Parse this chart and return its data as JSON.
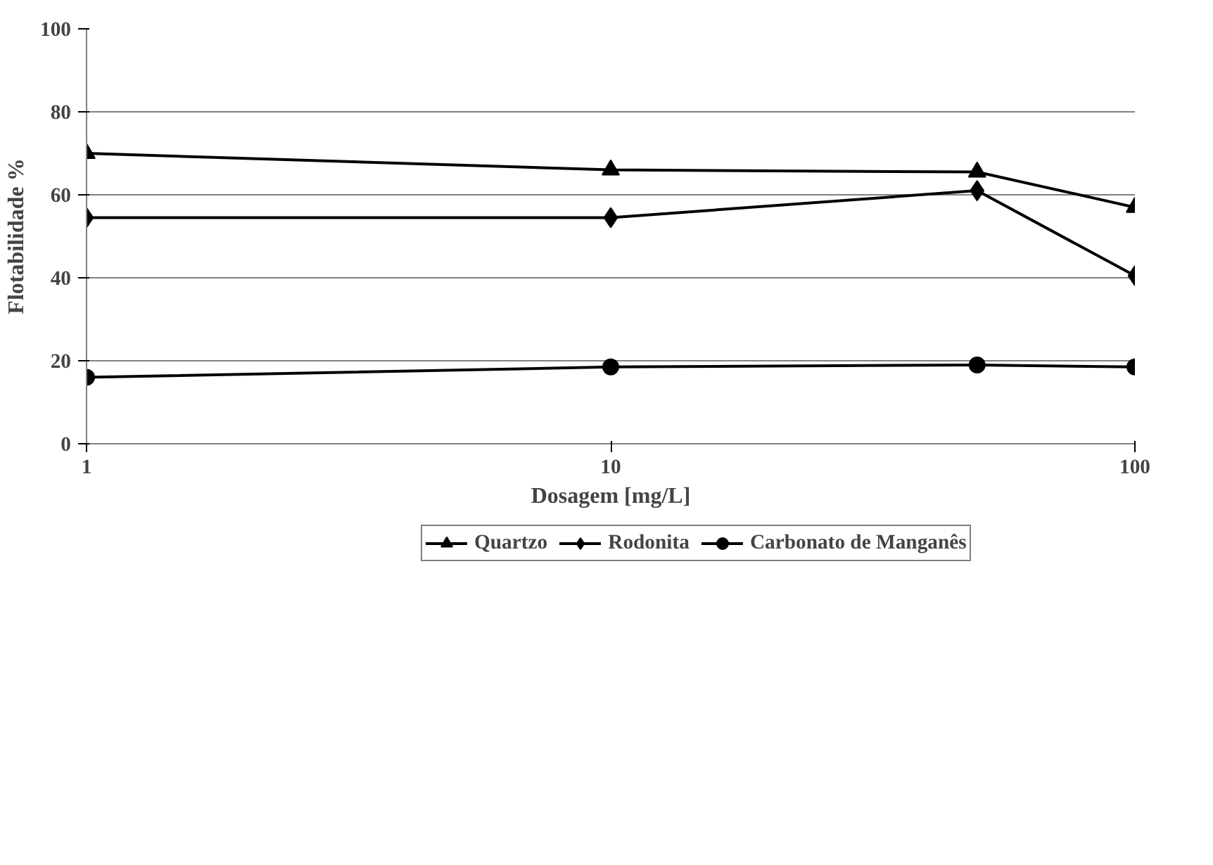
{
  "chart_data": {
    "type": "line",
    "xlabel": "Dosagem [mg/L]",
    "ylabel": "Flotabilidade %",
    "x": [
      1,
      10,
      50,
      100
    ],
    "log": "x",
    "xlim": [
      1,
      100
    ],
    "xticks": [
      1,
      10,
      100
    ],
    "ylim": [
      0,
      100
    ],
    "yticks": [
      0,
      20,
      40,
      60,
      80,
      100
    ],
    "grid": "y",
    "legend": "bottom",
    "line_style": "solid",
    "series": [
      {
        "name": "Quartzo",
        "color": "#000000",
        "marker": "triangle",
        "values": [
          70,
          66,
          65.5,
          57
        ]
      },
      {
        "name": "Rodonita",
        "color": "#000000",
        "marker": "diamond",
        "values": [
          54.5,
          54.5,
          61,
          40.5
        ]
      },
      {
        "name": "Carbonato de Manganês",
        "color": "#000000",
        "marker": "circle",
        "values": [
          16,
          18.5,
          19,
          18.5
        ]
      }
    ]
  }
}
